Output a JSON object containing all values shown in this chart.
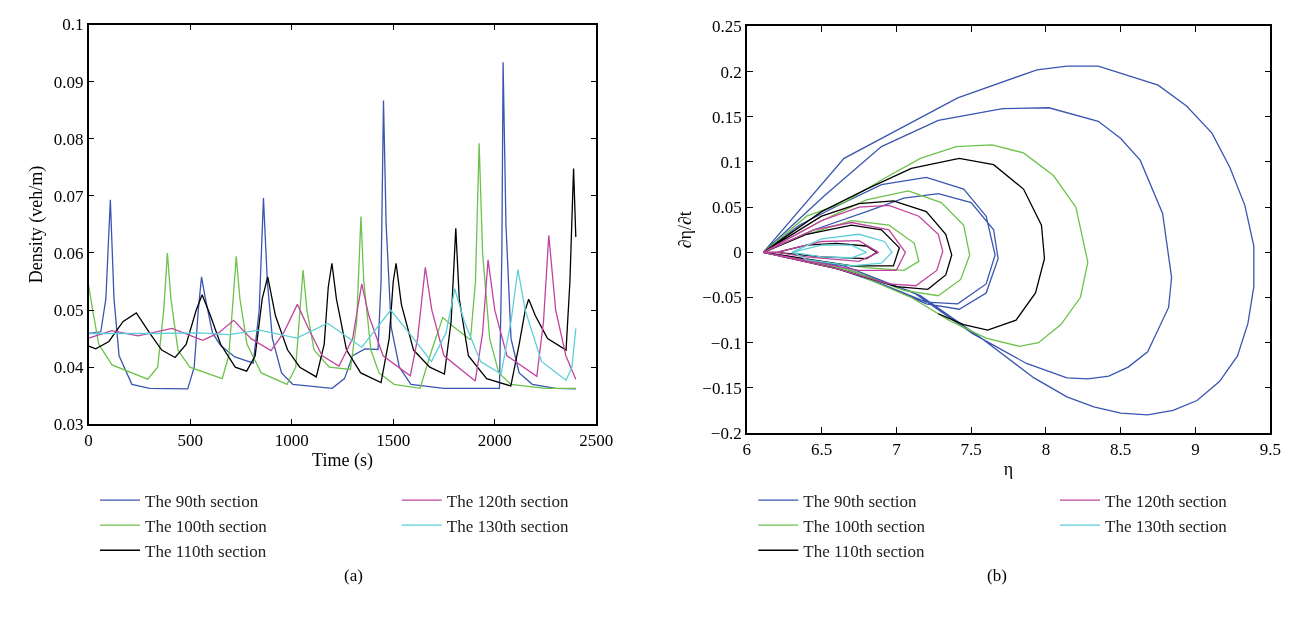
{
  "chart_data": [
    {
      "type": "line",
      "xlabel": "Time (s)",
      "ylabel": "Density (veh/m)",
      "annotations": [
        "(a)"
      ],
      "xlim": [
        0,
        2500
      ],
      "xticks": [
        0,
        500,
        1000,
        1500,
        2000,
        2500
      ],
      "ylim": [
        0.03,
        0.1
      ],
      "yticks": [
        0.03,
        0.04,
        0.05,
        0.06,
        0.07,
        0.08,
        0.09,
        0.1
      ],
      "legend": "bottom",
      "series": [
        {
          "name": "The 90th section",
          "color": "#3a56b0",
          "x": [
            0,
            60,
            85,
            107,
            125,
            150,
            213,
            300,
            488,
            520,
            540,
            556,
            575,
            610,
            650,
            720,
            811,
            840,
            861,
            880,
            905,
            950,
            1005,
            1199,
            1260,
            1300,
            1361,
            1425,
            1440,
            1452,
            1465,
            1490,
            1530,
            1587,
            1749,
            2023,
            2035,
            2041,
            2055,
            2080,
            2120,
            2185,
            2300,
            2399
          ],
          "values": [
            0.0459,
            0.0462,
            0.052,
            0.0693,
            0.052,
            0.042,
            0.037,
            0.0363,
            0.0362,
            0.04,
            0.05,
            0.0558,
            0.052,
            0.046,
            0.0438,
            0.0418,
            0.0407,
            0.05,
            0.0696,
            0.055,
            0.045,
            0.039,
            0.037,
            0.0363,
            0.038,
            0.042,
            0.0432,
            0.0431,
            0.055,
            0.0867,
            0.065,
            0.047,
            0.04,
            0.037,
            0.0363,
            0.0363,
            0.06,
            0.0934,
            0.065,
            0.045,
            0.039,
            0.037,
            0.0363,
            0.0362
          ]
        },
        {
          "name": "The 100th section",
          "color": "#6cc24a",
          "x": [
            0,
            20,
            50,
            115,
            291,
            340,
            370,
            388,
            405,
            440,
            498,
            658,
            690,
            712,
            727,
            745,
            780,
            850,
            977,
            1020,
            1045,
            1056,
            1075,
            1110,
            1185,
            1289,
            1320,
            1341,
            1355,
            1390,
            1430,
            1504,
            1632,
            1690,
            1744,
            1800,
            1880,
            1905,
            1923,
            1940,
            1975,
            2020,
            2079,
            2250,
            2399
          ],
          "values": [
            0.0543,
            0.05,
            0.044,
            0.0404,
            0.0379,
            0.04,
            0.05,
            0.06,
            0.052,
            0.043,
            0.04,
            0.038,
            0.042,
            0.052,
            0.0594,
            0.052,
            0.044,
            0.039,
            0.037,
            0.04,
            0.052,
            0.057,
            0.05,
            0.043,
            0.04,
            0.0396,
            0.048,
            0.0664,
            0.055,
            0.043,
            0.039,
            0.037,
            0.0363,
            0.043,
            0.0487,
            0.047,
            0.0448,
            0.055,
            0.0792,
            0.06,
            0.045,
            0.039,
            0.037,
            0.0363,
            0.0363
          ]
        },
        {
          "name": "The 110th section",
          "color": "#000000",
          "x": [
            0,
            35,
            100,
            170,
            235,
            300,
            360,
            426,
            480,
            530,
            559,
            600,
            650,
            722,
            778,
            820,
            855,
            882,
            920,
            980,
            1040,
            1121,
            1160,
            1180,
            1198,
            1220,
            1270,
            1340,
            1440,
            1480,
            1500,
            1514,
            1540,
            1600,
            1680,
            1752,
            1785,
            1808,
            1825,
            1870,
            1960,
            2079,
            2120,
            2150,
            2167,
            2200,
            2260,
            2351,
            2370,
            2388,
            2399
          ],
          "values": [
            0.0437,
            0.0432,
            0.0445,
            0.048,
            0.0495,
            0.046,
            0.043,
            0.0417,
            0.044,
            0.05,
            0.0527,
            0.049,
            0.044,
            0.04,
            0.0393,
            0.042,
            0.052,
            0.0558,
            0.049,
            0.043,
            0.04,
            0.0383,
            0.044,
            0.054,
            0.0582,
            0.052,
            0.043,
            0.039,
            0.0373,
            0.045,
            0.055,
            0.0582,
            0.051,
            0.043,
            0.04,
            0.0388,
            0.048,
            0.0643,
            0.052,
            0.042,
            0.038,
            0.0367,
            0.044,
            0.05,
            0.0519,
            0.049,
            0.045,
            0.043,
            0.055,
            0.0748,
            0.0628
          ]
        },
        {
          "name": "The 120th section",
          "color": "#c0449e",
          "x": [
            0,
            115,
            243,
            410,
            562,
            640,
            714,
            800,
            898,
            960,
            1028,
            1080,
            1150,
            1233,
            1300,
            1345,
            1380,
            1450,
            1584,
            1620,
            1658,
            1690,
            1750,
            1904,
            1940,
            1967,
            2000,
            2060,
            2207,
            2240,
            2266,
            2300,
            2350,
            2399
          ],
          "values": [
            0.0451,
            0.0464,
            0.0455,
            0.0468,
            0.0447,
            0.046,
            0.0482,
            0.045,
            0.0429,
            0.046,
            0.051,
            0.047,
            0.042,
            0.0402,
            0.045,
            0.0546,
            0.049,
            0.042,
            0.0385,
            0.045,
            0.0575,
            0.05,
            0.042,
            0.0376,
            0.046,
            0.0588,
            0.05,
            0.042,
            0.0384,
            0.048,
            0.0631,
            0.05,
            0.042,
            0.0379
          ]
        },
        {
          "name": "The 130th section",
          "color": "#5ccfd9",
          "x": [
            0,
            300,
            546,
            690,
            842,
            1025,
            1177,
            1345,
            1488,
            1600,
            1688,
            1760,
            1803,
            1850,
            1930,
            2031,
            2080,
            2114,
            2150,
            2230,
            2351,
            2380,
            2399
          ],
          "values": [
            0.0459,
            0.0459,
            0.046,
            0.0457,
            0.0465,
            0.0451,
            0.0477,
            0.0435,
            0.05,
            0.045,
            0.041,
            0.046,
            0.0537,
            0.048,
            0.041,
            0.0388,
            0.048,
            0.0571,
            0.05,
            0.041,
            0.0377,
            0.04,
            0.0468
          ]
        }
      ]
    },
    {
      "type": "line",
      "xlabel": "η",
      "ylabel": "∂η/∂t",
      "annotations": [
        "(b)"
      ],
      "xlim": [
        6,
        9.5
      ],
      "xticks": [
        6,
        6.5,
        7,
        7.5,
        8,
        8.5,
        9,
        9.5
      ],
      "ylim": [
        -0.2,
        0.25
      ],
      "yticks": [
        -0.2,
        -0.15,
        -0.1,
        -0.05,
        0,
        0.05,
        0.1,
        0.15,
        0.2,
        0.25
      ],
      "legend": "bottom",
      "series": [
        {
          "name": "The 90th section",
          "color": "#3a56b0",
          "x": [
            6.11,
            6.35,
            6.6,
            6.9,
            7.2,
            7.45,
            7.6,
            7.66,
            7.6,
            7.41,
            7.2,
            6.9,
            6.5,
            6.11,
            6.45,
            6.8,
            7.05,
            7.28,
            7.5,
            7.65,
            7.68,
            7.6,
            7.42,
            7.2,
            6.9,
            6.5,
            6.11,
            6.52,
            6.9,
            7.28,
            7.71,
            8.02,
            8.35,
            8.5,
            8.63,
            8.78,
            8.84,
            8.82,
            8.68,
            8.55,
            8.42,
            8.28,
            8.14,
            7.87,
            7.51,
            7.11,
            6.6,
            6.11,
            6.65,
            7.41,
            7.94,
            8.14,
            8.35,
            8.75,
            8.94,
            9.11,
            9.23,
            9.33,
            9.39,
            9.39,
            9.35,
            9.28,
            9.16,
            9.01,
            8.85,
            8.68,
            8.5,
            8.32,
            8.14,
            7.92,
            7.56,
            7.16,
            6.65,
            6.12
          ],
          "values": [
            0,
            0.03,
            0.051,
            0.075,
            0.083,
            0.07,
            0.04,
            -0.003,
            -0.035,
            -0.057,
            -0.055,
            -0.035,
            -0.012,
            0,
            0.025,
            0.045,
            0.06,
            0.065,
            0.055,
            0.025,
            -0.007,
            -0.045,
            -0.063,
            -0.057,
            -0.035,
            -0.012,
            0,
            0.063,
            0.117,
            0.146,
            0.159,
            0.16,
            0.145,
            0.126,
            0.102,
            0.043,
            -0.028,
            -0.061,
            -0.11,
            -0.127,
            -0.137,
            -0.14,
            -0.139,
            -0.123,
            -0.09,
            -0.044,
            -0.015,
            0,
            0.104,
            0.171,
            0.202,
            0.206,
            0.206,
            0.185,
            0.162,
            0.132,
            0.094,
            0.052,
            0.007,
            -0.038,
            -0.079,
            -0.115,
            -0.143,
            -0.164,
            -0.175,
            -0.18,
            -0.178,
            -0.171,
            -0.16,
            -0.139,
            -0.094,
            -0.048,
            -0.015,
            0
          ]
        },
        {
          "name": "The 100th section",
          "color": "#6cc24a",
          "x": [
            6.11,
            6.4,
            6.7,
            6.95,
            7.12,
            7.15,
            7.05,
            6.8,
            6.4,
            6.11,
            6.5,
            6.8,
            7.08,
            7.3,
            7.45,
            7.49,
            7.43,
            7.28,
            7.05,
            6.7,
            6.11,
            6.4,
            6.65,
            6.9,
            7.16,
            7.4,
            7.64,
            7.85,
            8.05,
            8.2,
            8.28,
            8.23,
            8.1,
            7.95,
            7.82,
            7.6,
            7.35,
            7.1,
            6.7,
            6.12
          ],
          "values": [
            0,
            0.02,
            0.035,
            0.03,
            0.01,
            -0.01,
            -0.02,
            -0.017,
            -0.008,
            0,
            0.035,
            0.058,
            0.068,
            0.055,
            0.03,
            -0.003,
            -0.03,
            -0.048,
            -0.042,
            -0.02,
            0,
            0.04,
            0.055,
            0.08,
            0.104,
            0.117,
            0.119,
            0.11,
            0.085,
            0.05,
            -0.011,
            -0.05,
            -0.08,
            -0.1,
            -0.104,
            -0.095,
            -0.075,
            -0.05,
            -0.022,
            0
          ]
        },
        {
          "name": "The 110th section",
          "color": "#000000",
          "x": [
            6.2,
            6.4,
            6.6,
            6.8,
            6.87,
            6.8,
            6.5,
            6.2,
            6.11,
            6.4,
            6.7,
            6.9,
            7.02,
            6.98,
            6.7,
            6.11,
            6.5,
            6.75,
            6.98,
            7.2,
            7.33,
            7.37,
            7.33,
            7.21,
            7.0,
            6.6,
            6.11,
            6.5,
            6.8,
            7.1,
            7.42,
            7.65,
            7.85,
            7.97,
            7.99,
            7.93,
            7.8,
            7.61,
            7.45,
            7.28
          ],
          "values": [
            0,
            0.008,
            0.01,
            0.007,
            0,
            -0.007,
            -0.005,
            0,
            0,
            0.02,
            0.03,
            0.025,
            0.005,
            -0.015,
            -0.015,
            0,
            0.04,
            0.054,
            0.057,
            0.045,
            0.02,
            -0.003,
            -0.025,
            -0.041,
            -0.038,
            -0.018,
            0,
            0.045,
            0.07,
            0.093,
            0.104,
            0.097,
            0.07,
            0.03,
            -0.007,
            -0.045,
            -0.075,
            -0.086,
            -0.08,
            -0.068
          ]
        },
        {
          "name": "The 120th section",
          "color": "#c0449e",
          "x": [
            6.2,
            6.5,
            6.75,
            6.88,
            6.75,
            6.4,
            6.2,
            6.11,
            6.45,
            6.7,
            6.95,
            7.06,
            7.0,
            6.75,
            6.11,
            6.5,
            6.75,
            6.95,
            7.15,
            7.28,
            7.31,
            7.27,
            7.13,
            6.95,
            6.6,
            6.11
          ],
          "values": [
            0,
            0.012,
            0.013,
            0,
            -0.01,
            -0.005,
            0,
            0,
            0.025,
            0.033,
            0.025,
            0,
            -0.02,
            -0.02,
            0,
            0.035,
            0.05,
            0.052,
            0.04,
            0.02,
            0.001,
            -0.02,
            -0.037,
            -0.035,
            -0.018,
            0
          ]
        },
        {
          "name": "The 130th section",
          "color": "#5ccfd9",
          "x": [
            6.3,
            6.5,
            6.7,
            6.8,
            6.7,
            6.5,
            6.3,
            6.5,
            6.75,
            6.92,
            6.97,
            6.9,
            6.7,
            6.4,
            6.31
          ],
          "values": [
            0,
            0.008,
            0.008,
            0,
            -0.006,
            -0.005,
            0,
            0.015,
            0.02,
            0.012,
            0,
            -0.012,
            -0.015,
            -0.008,
            0
          ]
        }
      ]
    }
  ]
}
